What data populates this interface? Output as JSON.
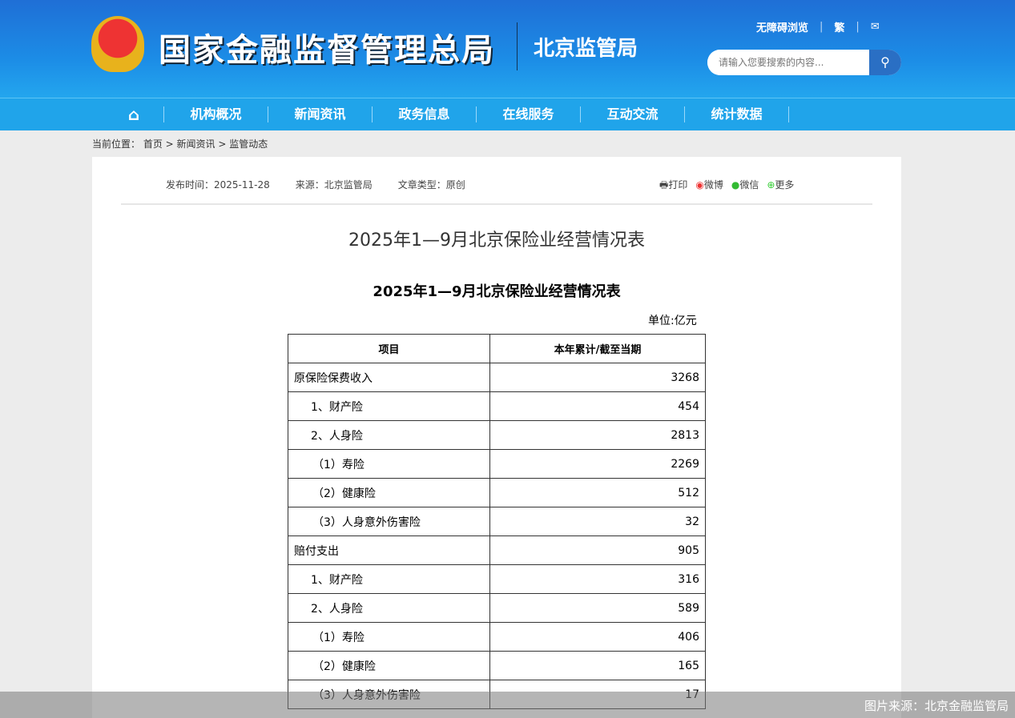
{
  "header": {
    "logo_main": "国家金融监督管理总局",
    "logo_sub": "北京监管局",
    "accessibility": "无障碍浏览",
    "traditional": "繁",
    "search_placeholder": "请输入您要搜索的内容..."
  },
  "nav": [
    "机构概况",
    "新闻资讯",
    "政务信息",
    "在线服务",
    "互动交流",
    "统计数据"
  ],
  "breadcrumb": {
    "label": "当前位置：",
    "path": "首页 > 新闻资讯 > 监管动态"
  },
  "meta": {
    "date": "发布时间：2025-11-28",
    "source": "来源：北京监管局",
    "type": "文章类型：原创"
  },
  "share": {
    "print": "打印",
    "weibo": "微博",
    "wechat": "微信",
    "more": "更多"
  },
  "article": {
    "title": "2025年1—9月北京保险业经营情况表",
    "table_title": "2025年1—9月北京保险业经营情况表",
    "unit": "单位:亿元"
  },
  "table": {
    "headers": [
      "项目",
      "本年累计/截至当期"
    ],
    "rows": [
      [
        "原保险保费收入",
        "3268"
      ],
      [
        "　1、财产险",
        "454"
      ],
      [
        "　2、人身险",
        "2813"
      ],
      [
        "（1）寿险",
        "2269"
      ],
      [
        "（2）健康险",
        "512"
      ],
      [
        "（3）人身意外伤害险",
        "32"
      ],
      [
        "赔付支出",
        "905"
      ],
      [
        "　1、财产险",
        "316"
      ],
      [
        "　2、人身险",
        "589"
      ],
      [
        "（1）寿险",
        "406"
      ],
      [
        "（2）健康险",
        "165"
      ],
      [
        "（3）人身意外伤害险",
        "17"
      ]
    ]
  },
  "caption": "图片来源：北京金融监管局"
}
